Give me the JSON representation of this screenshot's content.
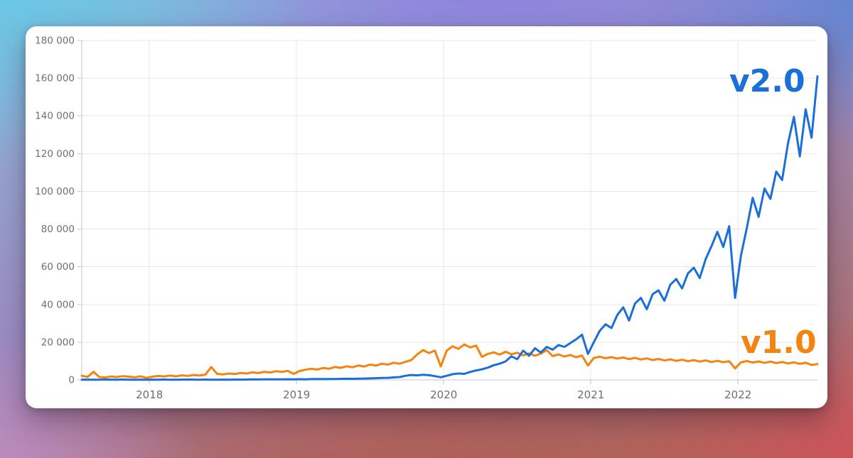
{
  "colors": {
    "series_v2": "#1a6fd8",
    "series_v1": "#f5830f",
    "tick_label": "#6e6e6e",
    "gridline": "#e7e7e7",
    "spine": "#c6c6c6",
    "card_bg": "#ffffff"
  },
  "chart_data": {
    "type": "line",
    "title": "",
    "xlabel": "",
    "ylabel": "",
    "grid": true,
    "legend_position": "inline-labels",
    "xlim": [
      2017.54,
      2022.54
    ],
    "ylim": [
      0,
      180000
    ],
    "x_ticks": [
      2018,
      2019,
      2020,
      2021,
      2022
    ],
    "x_tick_labels": [
      "2018",
      "2019",
      "2020",
      "2021",
      "2022"
    ],
    "y_ticks": [
      0,
      20000,
      40000,
      60000,
      80000,
      100000,
      120000,
      140000,
      160000,
      180000
    ],
    "y_tick_labels": [
      "0",
      "20 000",
      "40 000",
      "60 000",
      "80 000",
      "100 000",
      "120 000",
      "140 000",
      "160 000",
      "180 000"
    ],
    "x": [
      2017.54,
      2017.58,
      2017.62,
      2017.66,
      2017.7,
      2017.74,
      2017.78,
      2017.82,
      2017.86,
      2017.9,
      2017.94,
      2017.98,
      2018.02,
      2018.06,
      2018.1,
      2018.14,
      2018.18,
      2018.22,
      2018.26,
      2018.3,
      2018.34,
      2018.38,
      2018.42,
      2018.46,
      2018.5,
      2018.54,
      2018.58,
      2018.62,
      2018.66,
      2018.7,
      2018.74,
      2018.78,
      2018.82,
      2018.86,
      2018.9,
      2018.94,
      2018.98,
      2019.02,
      2019.06,
      2019.1,
      2019.14,
      2019.18,
      2019.22,
      2019.26,
      2019.3,
      2019.34,
      2019.38,
      2019.42,
      2019.46,
      2019.5,
      2019.54,
      2019.58,
      2019.62,
      2019.66,
      2019.7,
      2019.74,
      2019.78,
      2019.82,
      2019.86,
      2019.9,
      2019.94,
      2019.98,
      2020.02,
      2020.06,
      2020.1,
      2020.14,
      2020.18,
      2020.22,
      2020.26,
      2020.3,
      2020.34,
      2020.38,
      2020.42,
      2020.46,
      2020.5,
      2020.54,
      2020.58,
      2020.62,
      2020.66,
      2020.7,
      2020.74,
      2020.78,
      2020.82,
      2020.86,
      2020.9,
      2020.94,
      2020.98,
      2021.02,
      2021.06,
      2021.1,
      2021.14,
      2021.18,
      2021.22,
      2021.26,
      2021.3,
      2021.34,
      2021.38,
      2021.42,
      2021.46,
      2021.5,
      2021.54,
      2021.58,
      2021.62,
      2021.66,
      2021.7,
      2021.74,
      2021.78,
      2021.82,
      2021.86,
      2021.9,
      2021.94,
      2021.98,
      2022.02,
      2022.06,
      2022.1,
      2022.14,
      2022.18,
      2022.22,
      2022.26,
      2022.3,
      2022.34,
      2022.38,
      2022.42,
      2022.46,
      2022.5,
      2022.54
    ],
    "series": [
      {
        "name": "v1.0",
        "color": "#f5830f",
        "values": [
          2200,
          1600,
          4300,
          1500,
          1300,
          1800,
          1500,
          2000,
          1700,
          1400,
          1900,
          1100,
          1700,
          2100,
          1800,
          2300,
          1900,
          2400,
          2100,
          2600,
          2300,
          2800,
          6800,
          3200,
          2900,
          3400,
          3100,
          3700,
          3400,
          4000,
          3600,
          4300,
          3900,
          4600,
          4200,
          4800,
          3200,
          4700,
          5400,
          5900,
          5500,
          6300,
          5900,
          6800,
          6400,
          7200,
          6700,
          7600,
          7100,
          8100,
          7600,
          8600,
          8100,
          9100,
          8600,
          9600,
          10500,
          13500,
          15800,
          14200,
          15500,
          7100,
          15500,
          17800,
          16500,
          18800,
          17200,
          18200,
          12200,
          13800,
          14600,
          13400,
          14900,
          13600,
          14400,
          13000,
          14100,
          12800,
          13900,
          15800,
          12600,
          13500,
          12400,
          13200,
          12000,
          12900,
          7600,
          11600,
          12300,
          11500,
          12100,
          11300,
          11900,
          11000,
          11700,
          10800,
          11400,
          10500,
          11100,
          10300,
          10900,
          10100,
          10700,
          9900,
          10500,
          9700,
          10300,
          9500,
          10100,
          9400,
          9900,
          6100,
          9300,
          10000,
          9200,
          9800,
          9000,
          9700,
          8900,
          9500,
          8700,
          9300,
          8500,
          9100,
          7900,
          8400
        ]
      },
      {
        "name": "v2.0",
        "color": "#1a6fd8",
        "values": [
          100,
          150,
          80,
          120,
          200,
          150,
          100,
          180,
          120,
          90,
          160,
          110,
          140,
          100,
          180,
          130,
          90,
          150,
          200,
          160,
          110,
          170,
          120,
          100,
          150,
          130,
          180,
          140,
          200,
          260,
          220,
          300,
          260,
          320,
          280,
          350,
          300,
          380,
          320,
          400,
          450,
          420,
          500,
          480,
          550,
          600,
          580,
          650,
          700,
          800,
          900,
          1000,
          1100,
          1300,
          1500,
          2200,
          2600,
          2400,
          2700,
          2500,
          2000,
          1400,
          2200,
          3000,
          3400,
          3200,
          4200,
          5000,
          5600,
          6500,
          7800,
          8600,
          9800,
          12500,
          11000,
          15500,
          12800,
          16800,
          14500,
          17500,
          16000,
          18500,
          17500,
          19500,
          21500,
          24000,
          13800,
          20000,
          26000,
          29500,
          27500,
          34500,
          38500,
          31500,
          40500,
          43500,
          37500,
          45500,
          47500,
          42000,
          50500,
          53500,
          48500,
          56500,
          59500,
          54000,
          64000,
          71000,
          78500,
          70500,
          81500,
          43500,
          66000,
          80500,
          96500,
          86500,
          101500,
          96000,
          110500,
          106000,
          125500,
          139500,
          118500,
          143500,
          128500,
          161000
        ]
      }
    ]
  }
}
